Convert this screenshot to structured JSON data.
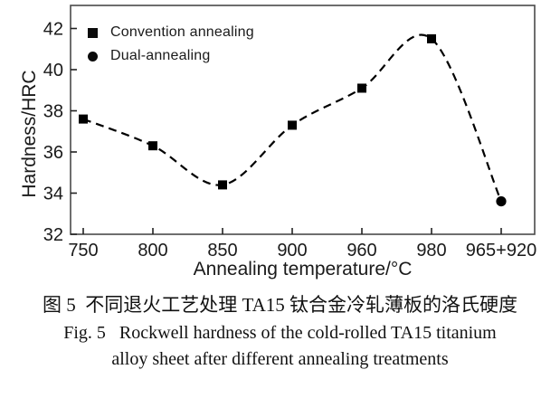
{
  "figure": {
    "caption_zh": "图 5  不同退火工艺处理 TA15 钛合金冷轧薄板的洛氏硬度",
    "caption_en_line1": "Fig. 5   Rockwell hardness of the cold-rolled TA15 titanium",
    "caption_en_line2": "alloy sheet after different annealing treatments"
  },
  "chart_data": {
    "type": "line",
    "title": "",
    "xlabel": "Annealing temperature/°C",
    "ylabel": "Hardness/HRC",
    "categories": [
      "750",
      "800",
      "850",
      "900",
      "960",
      "980",
      "965+920"
    ],
    "ylim": [
      32,
      42
    ],
    "yticks": [
      32,
      34,
      36,
      38,
      40,
      42
    ],
    "grid": false,
    "line_style": "dashed",
    "line_color": "#000000",
    "frame_color": "#4a4a4a",
    "legend_position": "top-left-inside",
    "series": [
      {
        "name": "Convention annealing",
        "marker": "square",
        "x_indices": [
          0,
          1,
          2,
          3,
          4,
          5
        ],
        "values": [
          37.6,
          36.3,
          34.4,
          37.3,
          39.1,
          41.5
        ]
      },
      {
        "name": "Dual-annealing",
        "marker": "circle",
        "x_indices": [
          6
        ],
        "values": [
          33.6
        ]
      }
    ],
    "curve_values": [
      37.6,
      36.3,
      34.4,
      37.3,
      39.1,
      41.5,
      33.6
    ]
  }
}
